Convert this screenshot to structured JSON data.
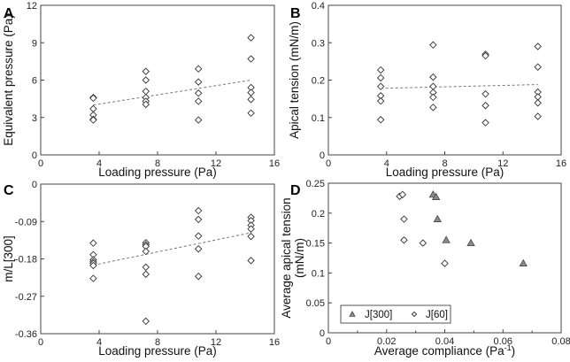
{
  "chart_data": [
    {
      "panel": "A",
      "type": "scatter",
      "title": "",
      "xlabel": "Loading pressure (Pa)",
      "ylabel": "Equivalent pressure (Pa)",
      "xlim": [
        0,
        16
      ],
      "ylim": [
        0,
        12
      ],
      "xticks": [
        0,
        4,
        8,
        12,
        16
      ],
      "yticks": [
        0,
        3,
        6,
        9,
        12
      ],
      "xtick_labels": [
        "0",
        "4",
        "8",
        "12",
        "16"
      ],
      "ytick_labels": [
        "0",
        "3",
        "6",
        "9",
        "12"
      ],
      "grid": false,
      "series": [
        {
          "name": "data",
          "marker": "diamond",
          "points": [
            [
              3.6,
              4.6
            ],
            [
              3.6,
              4.55
            ],
            [
              3.6,
              3.7
            ],
            [
              3.6,
              3.2
            ],
            [
              3.6,
              2.85
            ],
            [
              3.6,
              2.8
            ],
            [
              7.2,
              6.7
            ],
            [
              7.2,
              6.0
            ],
            [
              7.2,
              5.1
            ],
            [
              7.2,
              4.6
            ],
            [
              7.2,
              4.3
            ],
            [
              7.2,
              4.05
            ],
            [
              10.8,
              6.9
            ],
            [
              10.8,
              5.85
            ],
            [
              10.8,
              4.95
            ],
            [
              10.8,
              4.3
            ],
            [
              10.8,
              2.8
            ],
            [
              14.4,
              9.4
            ],
            [
              14.4,
              7.7
            ],
            [
              14.4,
              5.4
            ],
            [
              14.4,
              5.0
            ],
            [
              14.4,
              4.45
            ],
            [
              14.4,
              3.35
            ]
          ]
        }
      ],
      "trendline": [
        [
          3.6,
          4.0
        ],
        [
          14.4,
          6.0
        ]
      ]
    },
    {
      "panel": "B",
      "type": "scatter",
      "title": "",
      "xlabel": "Loading pressure (Pa)",
      "ylabel": "Apical tension (mN/m)",
      "xlim": [
        0,
        16
      ],
      "ylim": [
        0,
        0.4
      ],
      "xticks": [
        0,
        4,
        8,
        12,
        16
      ],
      "yticks": [
        0,
        0.1,
        0.2,
        0.3,
        0.4
      ],
      "xtick_labels": [
        "0",
        "4",
        "8",
        "12",
        "16"
      ],
      "ytick_labels": [
        "0",
        "0.1",
        "0.2",
        "0.3",
        "0.4"
      ],
      "grid": false,
      "series": [
        {
          "name": "data",
          "marker": "diamond",
          "points": [
            [
              3.6,
              0.227
            ],
            [
              3.6,
              0.206
            ],
            [
              3.6,
              0.183
            ],
            [
              3.6,
              0.158
            ],
            [
              3.6,
              0.144
            ],
            [
              3.6,
              0.094
            ],
            [
              7.2,
              0.294
            ],
            [
              7.2,
              0.208
            ],
            [
              7.2,
              0.183
            ],
            [
              7.2,
              0.167
            ],
            [
              7.2,
              0.154
            ],
            [
              7.2,
              0.127
            ],
            [
              10.8,
              0.269
            ],
            [
              10.8,
              0.265
            ],
            [
              10.8,
              0.163
            ],
            [
              10.8,
              0.132
            ],
            [
              10.8,
              0.086
            ],
            [
              14.4,
              0.29
            ],
            [
              14.4,
              0.235
            ],
            [
              14.4,
              0.168
            ],
            [
              14.4,
              0.155
            ],
            [
              14.4,
              0.139
            ],
            [
              14.4,
              0.103
            ]
          ]
        }
      ],
      "trendline": [
        [
          3.6,
          0.178
        ],
        [
          14.4,
          0.188
        ]
      ]
    },
    {
      "panel": "C",
      "type": "scatter",
      "title": "",
      "xlabel": "Loading pressure (Pa)",
      "ylabel": "m/L[300]",
      "xlim": [
        0,
        16
      ],
      "ylim": [
        -0.36,
        0
      ],
      "xticks": [
        0,
        4,
        8,
        12,
        16
      ],
      "yticks": [
        -0.36,
        -0.27,
        -0.18,
        -0.09,
        0
      ],
      "xtick_labels": [
        "0",
        "4",
        "8",
        "12",
        "16"
      ],
      "ytick_labels": [
        "-0.36",
        "-0.27",
        "-0.18",
        "-0.09",
        "0"
      ],
      "grid": false,
      "series": [
        {
          "name": "data",
          "marker": "diamond",
          "points": [
            [
              3.6,
              -0.142
            ],
            [
              3.6,
              -0.17
            ],
            [
              3.6,
              -0.182
            ],
            [
              3.6,
              -0.187
            ],
            [
              3.6,
              -0.191
            ],
            [
              3.6,
              -0.196
            ],
            [
              3.6,
              -0.227
            ],
            [
              7.2,
              -0.141
            ],
            [
              7.2,
              -0.146
            ],
            [
              7.2,
              -0.15
            ],
            [
              7.2,
              -0.162
            ],
            [
              7.2,
              -0.2
            ],
            [
              7.2,
              -0.217
            ],
            [
              7.2,
              -0.33
            ],
            [
              10.8,
              -0.064
            ],
            [
              10.8,
              -0.085
            ],
            [
              10.8,
              -0.125
            ],
            [
              10.8,
              -0.156
            ],
            [
              10.8,
              -0.222
            ],
            [
              14.4,
              -0.08
            ],
            [
              14.4,
              -0.088
            ],
            [
              14.4,
              -0.099
            ],
            [
              14.4,
              -0.108
            ],
            [
              14.4,
              -0.126
            ],
            [
              14.4,
              -0.184
            ]
          ]
        }
      ],
      "trendline": [
        [
          3.6,
          -0.195
        ],
        [
          14.4,
          -0.117
        ]
      ]
    },
    {
      "panel": "D",
      "type": "scatter",
      "title": "",
      "xlabel": "Average compliance (Pa",
      "xlabel_sup": "-1",
      "xlabel_end": ")",
      "ylabel_line1": "Average apical tension",
      "ylabel_line2": "(mN/m)",
      "xlim": [
        0,
        0.08
      ],
      "ylim": [
        0,
        0.25
      ],
      "xticks": [
        0,
        0.02,
        0.04,
        0.06,
        0.08
      ],
      "xminor_ticks": [
        0.01,
        0.03,
        0.05,
        0.07
      ],
      "yticks": [
        0,
        0.05,
        0.1,
        0.15,
        0.2,
        0.25
      ],
      "xtick_labels": [
        "0",
        "0.02",
        "0.04",
        "0.06",
        "0.08"
      ],
      "ytick_labels": [
        "0",
        "0.05",
        "0.1",
        "0.15",
        "0.2",
        "0.25"
      ],
      "grid": false,
      "legend": "bottom-left",
      "series": [
        {
          "name": "J[300]",
          "marker": "triangle",
          "color": "#8a8a8a",
          "points": [
            [
              0.036,
              0.231
            ],
            [
              0.037,
              0.227
            ],
            [
              0.0375,
              0.19
            ],
            [
              0.0405,
              0.155
            ],
            [
              0.049,
              0.15
            ],
            [
              0.067,
              0.116
            ]
          ]
        },
        {
          "name": "J[60]",
          "marker": "diamond",
          "color": "#ffffff",
          "points": [
            [
              0.0245,
              0.228
            ],
            [
              0.0255,
              0.231
            ],
            [
              0.026,
              0.19
            ],
            [
              0.026,
              0.155
            ],
            [
              0.0325,
              0.15
            ],
            [
              0.04,
              0.116
            ]
          ]
        }
      ]
    }
  ]
}
